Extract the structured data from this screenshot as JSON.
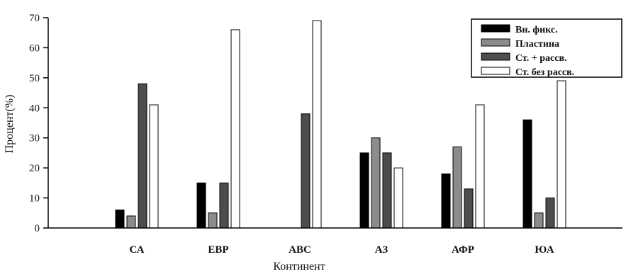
{
  "chart_data": {
    "type": "bar",
    "xlabel": "Континент",
    "ylabel": "Процент(%)",
    "ylim": [
      0,
      70
    ],
    "yticks": [
      0,
      10,
      20,
      30,
      40,
      50,
      60,
      70
    ],
    "grid": false,
    "legend_position": "top-right",
    "categories": [
      "СА",
      "ЕВР",
      "АВС",
      "АЗ",
      "АФР",
      "ЮА"
    ],
    "series": [
      {
        "name": "Вн. фикс.",
        "color": "#000000",
        "values": [
          6,
          15,
          0,
          25,
          18,
          36
        ]
      },
      {
        "name": "Пластина",
        "color": "#8c8c8c",
        "values": [
          4,
          5,
          0,
          30,
          27,
          5
        ]
      },
      {
        "name": "Ст. + рассв.",
        "color": "#4d4d4d",
        "values": [
          48,
          15,
          38,
          25,
          13,
          10
        ]
      },
      {
        "name": "Ст. без рассв.",
        "color": "#ffffff",
        "values": [
          41,
          66,
          69,
          20,
          41,
          49
        ]
      }
    ]
  }
}
